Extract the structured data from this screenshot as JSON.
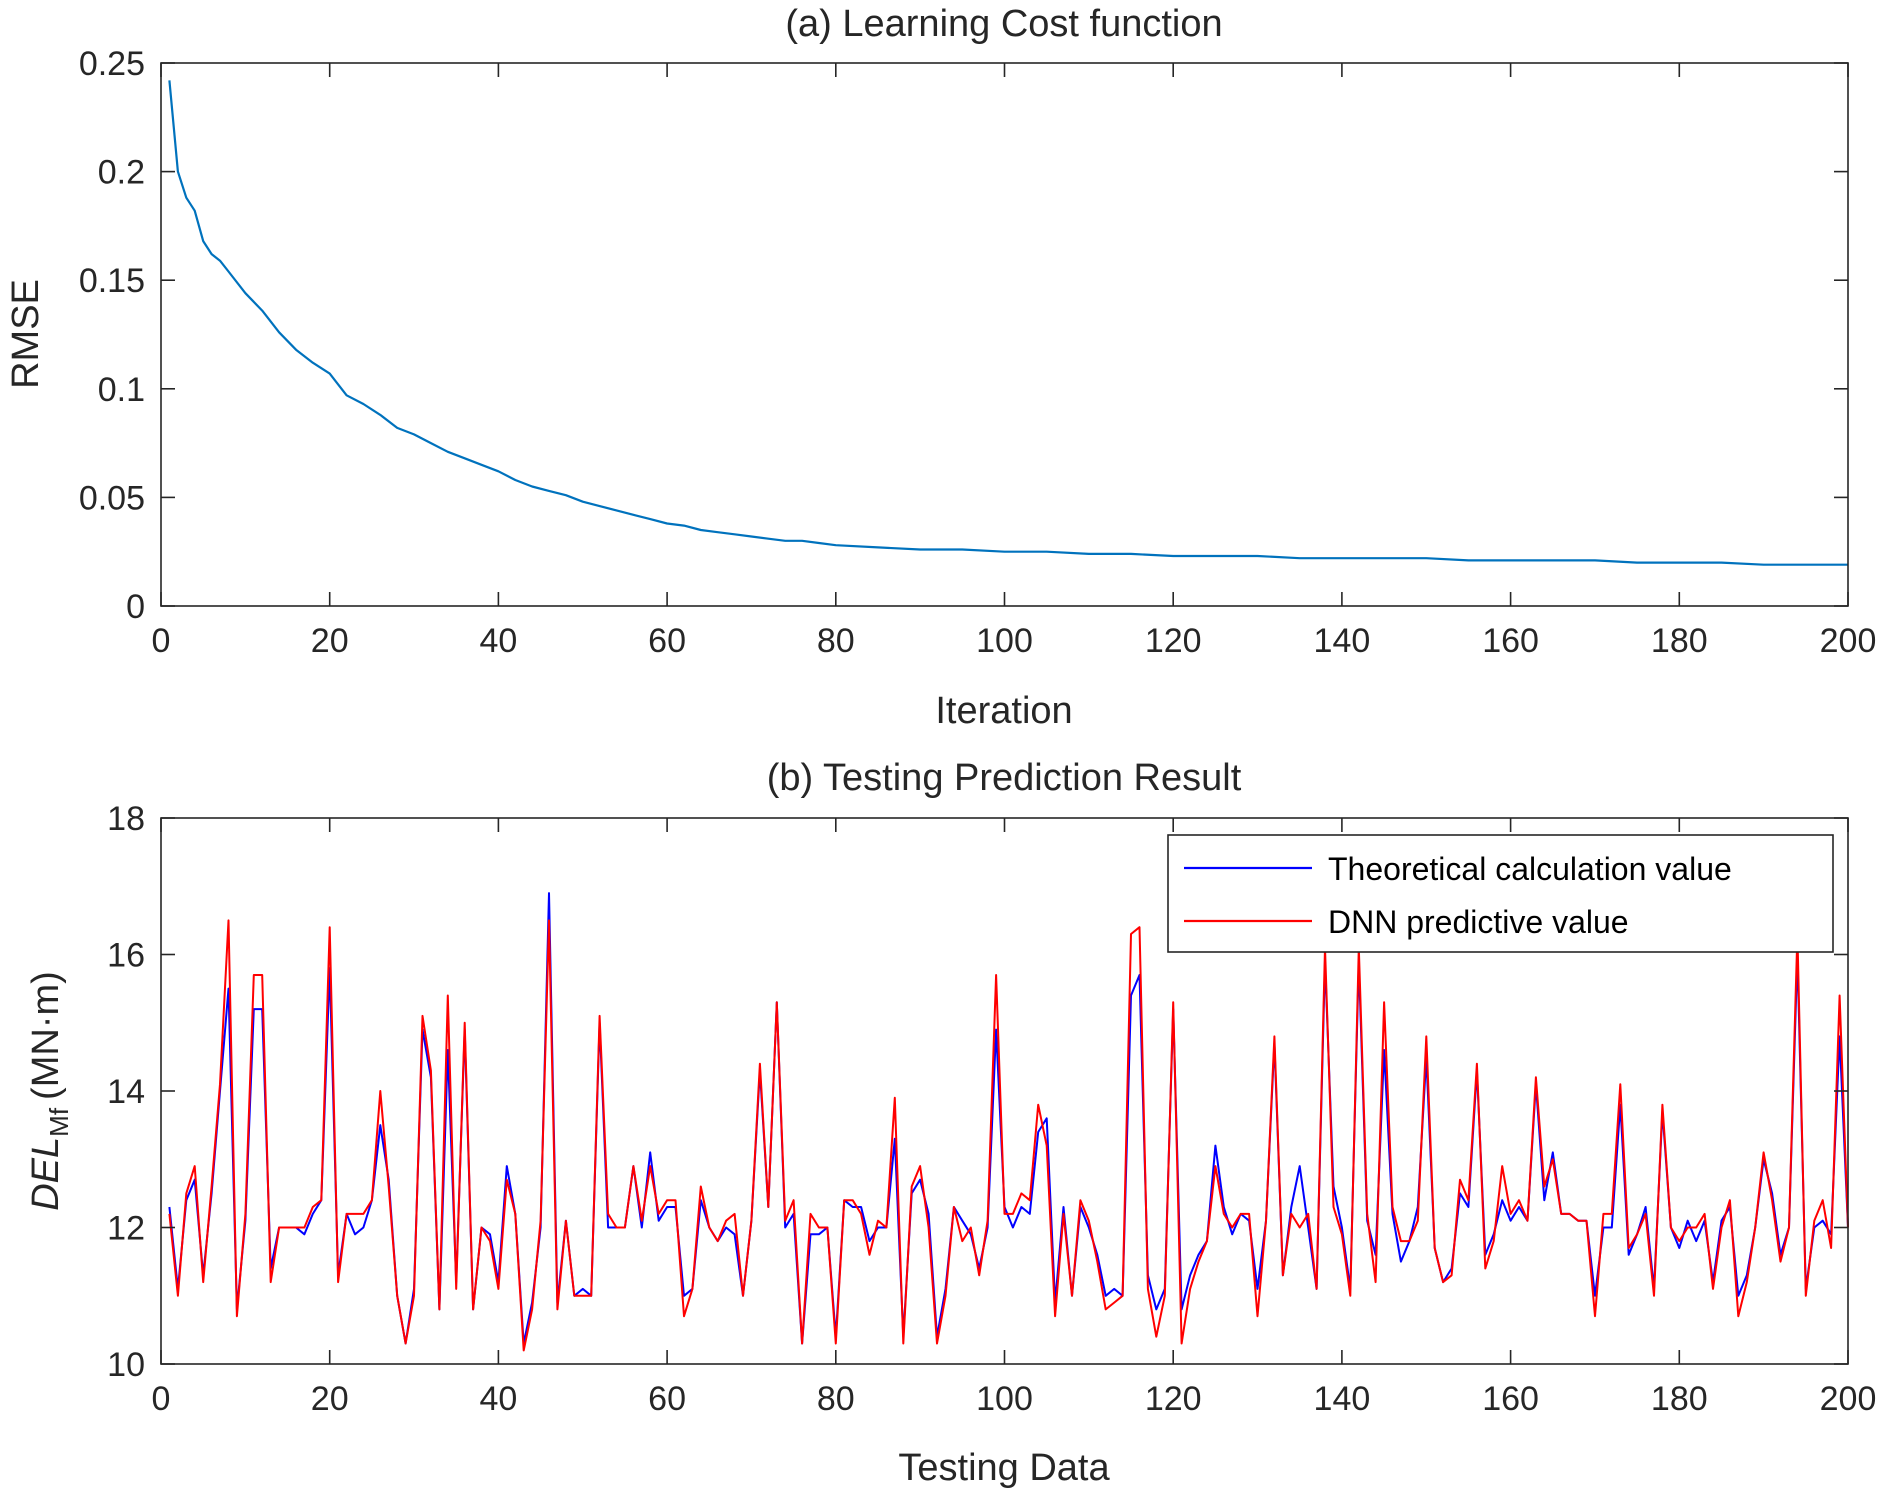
{
  "chart_data": [
    {
      "type": "line",
      "title": "(a) Learning Cost function",
      "xlabel": "Iteration",
      "ylabel": "RMSE",
      "xlim": [
        0,
        200
      ],
      "ylim": [
        0,
        0.25
      ],
      "xticks": [
        0,
        20,
        40,
        60,
        80,
        100,
        120,
        140,
        160,
        180,
        200
      ],
      "xtick_labels": [
        "0",
        "20",
        "40",
        "60",
        "80",
        "100",
        "120",
        "140",
        "160",
        "180",
        "200"
      ],
      "yticks": [
        0,
        0.05,
        0.1,
        0.15,
        0.2,
        0.25
      ],
      "ytick_labels": [
        "0",
        "0.05",
        "0.1",
        "0.15",
        "0.2",
        "0.25"
      ],
      "grid": false,
      "series": [
        {
          "name": "RMSE",
          "color": "#0072BD",
          "x": [
            1,
            2,
            3,
            4,
            5,
            6,
            7,
            8,
            10,
            12,
            14,
            16,
            18,
            20,
            22,
            24,
            26,
            28,
            30,
            32,
            34,
            36,
            38,
            40,
            42,
            44,
            46,
            48,
            50,
            52,
            54,
            56,
            58,
            60,
            62,
            64,
            66,
            68,
            70,
            72,
            74,
            76,
            78,
            80,
            85,
            90,
            95,
            100,
            105,
            110,
            115,
            120,
            125,
            130,
            135,
            140,
            145,
            150,
            155,
            160,
            165,
            170,
            175,
            180,
            185,
            190,
            195,
            200
          ],
          "values": [
            0.242,
            0.2,
            0.188,
            0.182,
            0.168,
            0.162,
            0.159,
            0.154,
            0.144,
            0.136,
            0.126,
            0.118,
            0.112,
            0.107,
            0.097,
            0.093,
            0.088,
            0.082,
            0.079,
            0.075,
            0.071,
            0.068,
            0.065,
            0.062,
            0.058,
            0.055,
            0.053,
            0.051,
            0.048,
            0.046,
            0.044,
            0.042,
            0.04,
            0.038,
            0.037,
            0.035,
            0.034,
            0.033,
            0.032,
            0.031,
            0.03,
            0.03,
            0.029,
            0.028,
            0.027,
            0.026,
            0.026,
            0.025,
            0.025,
            0.024,
            0.024,
            0.023,
            0.023,
            0.023,
            0.022,
            0.022,
            0.022,
            0.022,
            0.021,
            0.021,
            0.021,
            0.021,
            0.02,
            0.02,
            0.02,
            0.019,
            0.019,
            0.019
          ]
        }
      ]
    },
    {
      "type": "line",
      "title": "(b) Testing Prediction Result",
      "xlabel": "Testing Data",
      "ylabel": {
        "main": "DEL",
        "subscript": "Mf",
        "unit": "(MN·m)"
      },
      "xlim": [
        0,
        200
      ],
      "ylim": [
        10,
        18
      ],
      "xticks": [
        0,
        20,
        40,
        60,
        80,
        100,
        120,
        140,
        160,
        180,
        200
      ],
      "xtick_labels": [
        "0",
        "20",
        "40",
        "60",
        "80",
        "100",
        "120",
        "140",
        "160",
        "180",
        "200"
      ],
      "yticks": [
        10,
        12,
        14,
        16,
        18
      ],
      "ytick_labels": [
        "10",
        "12",
        "14",
        "16",
        "18"
      ],
      "grid": false,
      "legend_position": "top-right",
      "series": [
        {
          "name": "Theoretical calculation value",
          "color": "#0000FF",
          "values": [
            12.3,
            11.1,
            12.4,
            12.7,
            11.3,
            12.5,
            14.0,
            15.5,
            10.8,
            12.1,
            15.2,
            15.2,
            11.4,
            12.0,
            12.0,
            12.0,
            11.9,
            12.2,
            12.4,
            15.8,
            11.3,
            12.2,
            11.9,
            12.0,
            12.4,
            13.5,
            12.7,
            11.0,
            10.3,
            11.1,
            14.9,
            14.2,
            10.8,
            14.6,
            11.2,
            14.9,
            10.8,
            12.0,
            11.9,
            11.2,
            12.9,
            12.2,
            10.3,
            10.9,
            12.0,
            16.9,
            10.9,
            12.1,
            11.0,
            11.1,
            11.0,
            15.0,
            12.0,
            12.0,
            12.0,
            12.9,
            12.0,
            13.1,
            12.1,
            12.3,
            12.3,
            11.0,
            11.1,
            12.4,
            12.0,
            11.8,
            12.0,
            11.9,
            11.0,
            12.1,
            14.3,
            12.3,
            15.3,
            12.0,
            12.2,
            10.3,
            11.9,
            11.9,
            12.0,
            10.4,
            12.4,
            12.3,
            12.3,
            11.8,
            12.0,
            12.0,
            13.3,
            10.4,
            12.5,
            12.7,
            12.2,
            10.4,
            11.1,
            12.3,
            12.1,
            11.9,
            11.4,
            12.0,
            14.9,
            12.3,
            12.0,
            12.3,
            12.2,
            13.4,
            13.6,
            10.9,
            12.3,
            11.0,
            12.3,
            12.0,
            11.6,
            11.0,
            11.1,
            11.0,
            15.4,
            15.7,
            11.3,
            10.8,
            11.1,
            15.2,
            10.8,
            11.3,
            11.6,
            11.8,
            13.2,
            12.3,
            11.9,
            12.2,
            12.1,
            11.1,
            12.1,
            14.7,
            11.3,
            12.3,
            12.9,
            12.0,
            11.1,
            15.9,
            12.6,
            12.0,
            11.1,
            15.9,
            12.1,
            11.6,
            14.6,
            12.2,
            11.5,
            11.8,
            12.3,
            14.5,
            11.7,
            11.2,
            11.4,
            12.5,
            12.3,
            14.3,
            11.6,
            11.9,
            12.4,
            12.1,
            12.3,
            12.1,
            14.1,
            12.4,
            13.1,
            12.2,
            12.2,
            12.1,
            12.1,
            11.0,
            12.0,
            12.0,
            13.8,
            11.6,
            11.9,
            12.3,
            11.1,
            13.7,
            12.0,
            11.7,
            12.1,
            11.8,
            12.1,
            11.2,
            12.1,
            12.3,
            11.0,
            11.3,
            12.0,
            13.0,
            12.5,
            11.6,
            12.0,
            16.0,
            11.1,
            12.0,
            12.1,
            11.9,
            14.8,
            12.0
          ]
        },
        {
          "name": "DNN predictive value",
          "color": "#FF0000",
          "values": [
            12.2,
            11.0,
            12.5,
            12.9,
            11.2,
            12.6,
            14.1,
            16.5,
            10.7,
            12.2,
            15.7,
            15.7,
            11.2,
            12.0,
            12.0,
            12.0,
            12.0,
            12.3,
            12.4,
            16.4,
            11.2,
            12.2,
            12.2,
            12.2,
            12.4,
            14.0,
            12.6,
            11.0,
            10.3,
            11.0,
            15.1,
            14.3,
            10.8,
            15.4,
            11.1,
            15.0,
            10.8,
            12.0,
            11.8,
            11.1,
            12.7,
            12.2,
            10.2,
            10.8,
            12.1,
            16.5,
            10.8,
            12.1,
            11.0,
            11.0,
            11.0,
            15.1,
            12.2,
            12.0,
            12.0,
            12.9,
            12.1,
            12.9,
            12.2,
            12.4,
            12.4,
            10.7,
            11.1,
            12.6,
            12.0,
            11.8,
            12.1,
            12.2,
            11.0,
            12.1,
            14.4,
            12.3,
            15.3,
            12.1,
            12.4,
            10.3,
            12.2,
            12.0,
            12.0,
            10.3,
            12.4,
            12.4,
            12.2,
            11.6,
            12.1,
            12.0,
            13.9,
            10.3,
            12.6,
            12.9,
            12.0,
            10.3,
            11.0,
            12.3,
            11.8,
            12.0,
            11.3,
            12.1,
            15.7,
            12.2,
            12.2,
            12.5,
            12.4,
            13.8,
            13.2,
            10.7,
            12.2,
            11.0,
            12.4,
            12.1,
            11.5,
            10.8,
            10.9,
            11.0,
            16.3,
            16.4,
            11.1,
            10.4,
            11.0,
            15.3,
            10.3,
            11.1,
            11.5,
            11.8,
            12.9,
            12.2,
            12.0,
            12.2,
            12.2,
            10.7,
            12.1,
            14.8,
            11.3,
            12.2,
            12.0,
            12.2,
            11.1,
            16.1,
            12.3,
            11.9,
            11.0,
            16.1,
            12.2,
            11.2,
            15.3,
            12.3,
            11.8,
            11.8,
            12.1,
            14.8,
            11.7,
            11.2,
            11.3,
            12.7,
            12.4,
            14.4,
            11.4,
            11.8,
            12.9,
            12.2,
            12.4,
            12.1,
            14.2,
            12.6,
            13.0,
            12.2,
            12.2,
            12.1,
            12.1,
            10.7,
            12.2,
            12.2,
            14.1,
            11.7,
            11.9,
            12.2,
            11.0,
            13.8,
            12.0,
            11.8,
            12.0,
            12.0,
            12.2,
            11.1,
            12.0,
            12.4,
            10.7,
            11.2,
            12.0,
            13.1,
            12.4,
            11.5,
            12.0,
            16.3,
            11.0,
            12.1,
            12.4,
            11.7,
            15.4,
            12.0
          ]
        }
      ]
    }
  ]
}
